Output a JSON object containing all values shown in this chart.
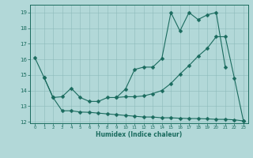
{
  "line1_x": [
    0,
    1,
    2,
    3,
    4,
    5,
    6,
    7,
    8,
    9,
    10,
    11,
    12,
    13,
    14,
    15,
    16,
    17,
    18,
    19,
    20,
    21,
    22,
    23
  ],
  "line1_y": [
    16.1,
    14.85,
    13.55,
    12.7,
    12.7,
    12.62,
    12.6,
    12.55,
    12.5,
    12.45,
    12.4,
    12.35,
    12.3,
    12.3,
    12.25,
    12.25,
    12.22,
    12.2,
    12.2,
    12.18,
    12.15,
    12.15,
    12.12,
    12.05
  ],
  "line2_x": [
    1,
    2,
    3,
    4,
    5,
    6,
    7,
    8,
    9,
    10,
    11,
    12,
    13,
    14,
    15,
    16,
    17,
    18,
    19,
    20,
    21,
    22,
    23
  ],
  "line2_y": [
    14.85,
    13.55,
    13.6,
    14.15,
    13.55,
    13.3,
    13.3,
    13.55,
    13.55,
    13.6,
    13.6,
    13.65,
    13.8,
    14.0,
    14.45,
    15.05,
    15.6,
    16.2,
    16.7,
    17.45,
    17.45,
    14.8,
    12.05
  ],
  "line3_x": [
    9,
    10,
    11,
    12,
    13,
    14,
    15,
    16,
    17,
    18,
    19,
    20,
    21
  ],
  "line3_y": [
    13.55,
    14.1,
    15.35,
    15.5,
    15.5,
    16.05,
    19.0,
    17.82,
    19.0,
    18.55,
    18.85,
    19.0,
    15.5
  ],
  "color": "#1a6b5e",
  "bg_color": "#b2d8d8",
  "grid_color": "#8ab8b8",
  "ylim": [
    11.9,
    19.5
  ],
  "xlim": [
    -0.5,
    23.5
  ],
  "yticks": [
    12,
    13,
    14,
    15,
    16,
    17,
    18,
    19
  ],
  "xticks": [
    0,
    1,
    2,
    3,
    4,
    5,
    6,
    7,
    8,
    9,
    10,
    11,
    12,
    13,
    14,
    15,
    16,
    17,
    18,
    19,
    20,
    21,
    22,
    23
  ],
  "xlabel": "Humidex (Indice chaleur)",
  "markersize": 2.5
}
